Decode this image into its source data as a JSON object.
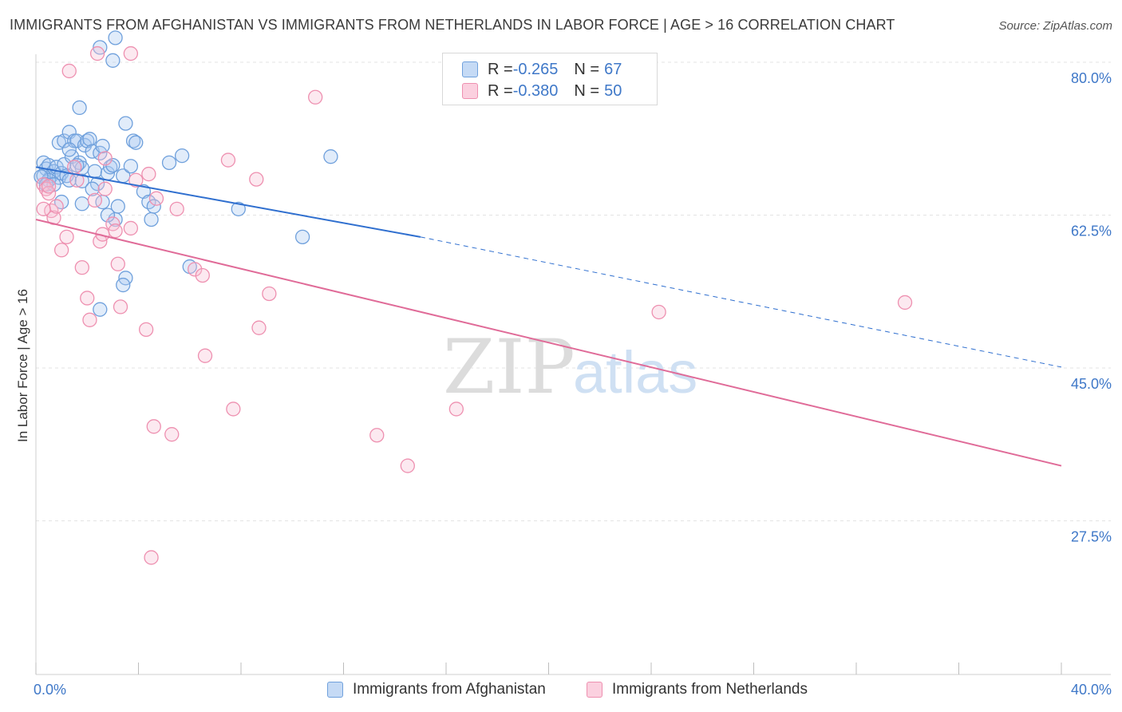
{
  "header": {
    "title": "IMMIGRANTS FROM AFGHANISTAN VS IMMIGRANTS FROM NETHERLANDS IN LABOR FORCE | AGE > 16 CORRELATION CHART",
    "source": "Source: ZipAtlas.com"
  },
  "legend": {
    "rows": [
      {
        "r_label": "R = ",
        "r_value": "-0.265",
        "n_label": "N = ",
        "n_value": "67"
      },
      {
        "r_label": "R = ",
        "r_value": "-0.380",
        "n_label": "N = ",
        "n_value": "50"
      }
    ]
  },
  "watermark": {
    "zip": "ZIP",
    "atlas": "atlas"
  },
  "chart_data": {
    "type": "scatter",
    "title": "IMMIGRANTS FROM AFGHANISTAN VS IMMIGRANTS FROM NETHERLANDS IN LABOR FORCE | AGE > 16 CORRELATION CHART",
    "xlabel": "",
    "ylabel": "In Labor Force | Age > 16",
    "xlim": [
      0,
      40
    ],
    "ylim": [
      10,
      83
    ],
    "x_tick_labels": [
      "0.0%",
      "40.0%"
    ],
    "y_ticks": [
      27.5,
      45.0,
      62.5,
      80.0
    ],
    "y_tick_labels": [
      "27.5%",
      "45.0%",
      "62.5%",
      "80.0%"
    ],
    "grid": true,
    "colors": {
      "afghanistan": "#6fa0dc",
      "netherlands": "#ee90b0",
      "afghanistan_line": "#2f6fcf",
      "netherlands_line": "#e06b98",
      "axis_label": "#3f78c8"
    },
    "series": [
      {
        "name": "Immigrants from Afghanistan",
        "r": -0.265,
        "n": 67,
        "trend": {
          "x0": 0,
          "y0": 68.0,
          "x1": 15,
          "y1": 60.0,
          "dash_x1": 40,
          "dash_y1": 45.1
        },
        "points": [
          [
            0.3,
            68.5
          ],
          [
            0.4,
            67.8
          ],
          [
            0.5,
            68.2
          ],
          [
            0.6,
            67.0
          ],
          [
            0.7,
            67.5
          ],
          [
            0.8,
            68.0
          ],
          [
            0.9,
            66.8
          ],
          [
            1.0,
            67.3
          ],
          [
            0.3,
            67.0
          ],
          [
            0.5,
            66.5
          ],
          [
            1.1,
            68.3
          ],
          [
            1.2,
            67.0
          ],
          [
            1.3,
            66.5
          ],
          [
            0.2,
            66.9
          ],
          [
            0.4,
            66.0
          ],
          [
            1.4,
            69.2
          ],
          [
            0.9,
            70.8
          ],
          [
            1.1,
            71.0
          ],
          [
            1.3,
            72.0
          ],
          [
            1.5,
            71.0
          ],
          [
            1.6,
            71.0
          ],
          [
            1.7,
            68.5
          ],
          [
            1.8,
            67.9
          ],
          [
            1.9,
            70.5
          ],
          [
            2.0,
            71.0
          ],
          [
            2.1,
            71.2
          ],
          [
            2.2,
            69.8
          ],
          [
            2.3,
            67.5
          ],
          [
            2.5,
            69.6
          ],
          [
            2.6,
            70.4
          ],
          [
            1.6,
            68.2
          ],
          [
            1.8,
            66.4
          ],
          [
            2.8,
            67.3
          ],
          [
            2.9,
            68.0
          ],
          [
            3.0,
            68.2
          ],
          [
            3.1,
            62.0
          ],
          [
            3.4,
            67.0
          ],
          [
            3.5,
            73.0
          ],
          [
            3.8,
            71.0
          ],
          [
            3.9,
            70.8
          ],
          [
            3.7,
            68.1
          ],
          [
            4.2,
            65.2
          ],
          [
            4.4,
            64.0
          ],
          [
            4.5,
            62.0
          ],
          [
            4.6,
            63.5
          ],
          [
            3.2,
            63.5
          ],
          [
            2.6,
            64.0
          ],
          [
            1.8,
            63.8
          ],
          [
            1.0,
            64.0
          ],
          [
            0.7,
            66.0
          ],
          [
            2.4,
            66.1
          ],
          [
            5.2,
            68.5
          ],
          [
            5.7,
            69.3
          ],
          [
            6.0,
            56.6
          ],
          [
            7.9,
            63.2
          ],
          [
            10.4,
            60.0
          ],
          [
            11.5,
            69.2
          ],
          [
            2.5,
            81.7
          ],
          [
            3.0,
            80.2
          ],
          [
            3.1,
            82.8
          ],
          [
            1.7,
            74.8
          ],
          [
            2.8,
            62.5
          ],
          [
            3.5,
            55.3
          ],
          [
            3.4,
            54.5
          ],
          [
            2.5,
            51.7
          ],
          [
            1.3,
            70.0
          ],
          [
            2.2,
            65.5
          ]
        ]
      },
      {
        "name": "Immigrants from Netherlands",
        "r": -0.38,
        "n": 50,
        "trend": {
          "x0": 0,
          "y0": 62.0,
          "x1": 40,
          "y1": 33.8
        },
        "points": [
          [
            0.3,
            66.0
          ],
          [
            0.4,
            65.5
          ],
          [
            0.5,
            65.0
          ],
          [
            0.6,
            63.0
          ],
          [
            0.7,
            62.2
          ],
          [
            0.8,
            63.5
          ],
          [
            0.3,
            63.2
          ],
          [
            0.5,
            65.8
          ],
          [
            1.0,
            58.5
          ],
          [
            1.2,
            60.0
          ],
          [
            1.5,
            68.0
          ],
          [
            1.6,
            66.5
          ],
          [
            1.8,
            56.5
          ],
          [
            2.0,
            53.0
          ],
          [
            2.1,
            50.5
          ],
          [
            2.3,
            64.2
          ],
          [
            2.5,
            59.5
          ],
          [
            2.6,
            60.3
          ],
          [
            2.7,
            65.5
          ],
          [
            3.0,
            61.5
          ],
          [
            3.1,
            60.7
          ],
          [
            3.2,
            56.9
          ],
          [
            3.3,
            52.0
          ],
          [
            3.7,
            61.0
          ],
          [
            3.9,
            66.5
          ],
          [
            4.3,
            49.4
          ],
          [
            4.4,
            67.2
          ],
          [
            4.7,
            64.4
          ],
          [
            5.5,
            63.2
          ],
          [
            6.2,
            56.3
          ],
          [
            6.5,
            55.6
          ],
          [
            6.6,
            46.4
          ],
          [
            7.5,
            68.8
          ],
          [
            7.7,
            40.3
          ],
          [
            8.6,
            66.6
          ],
          [
            8.7,
            49.6
          ],
          [
            9.1,
            53.5
          ],
          [
            10.9,
            76.0
          ],
          [
            13.3,
            37.3
          ],
          [
            14.5,
            33.8
          ],
          [
            16.4,
            40.3
          ],
          [
            24.3,
            51.4
          ],
          [
            33.9,
            52.5
          ],
          [
            2.4,
            81.0
          ],
          [
            3.7,
            81.0
          ],
          [
            1.3,
            79.0
          ],
          [
            2.7,
            69.0
          ],
          [
            5.3,
            37.4
          ],
          [
            4.6,
            38.3
          ],
          [
            4.5,
            23.3
          ]
        ]
      }
    ]
  },
  "bottom_legend": [
    "Immigrants from Afghanistan",
    "Immigrants from Netherlands"
  ]
}
